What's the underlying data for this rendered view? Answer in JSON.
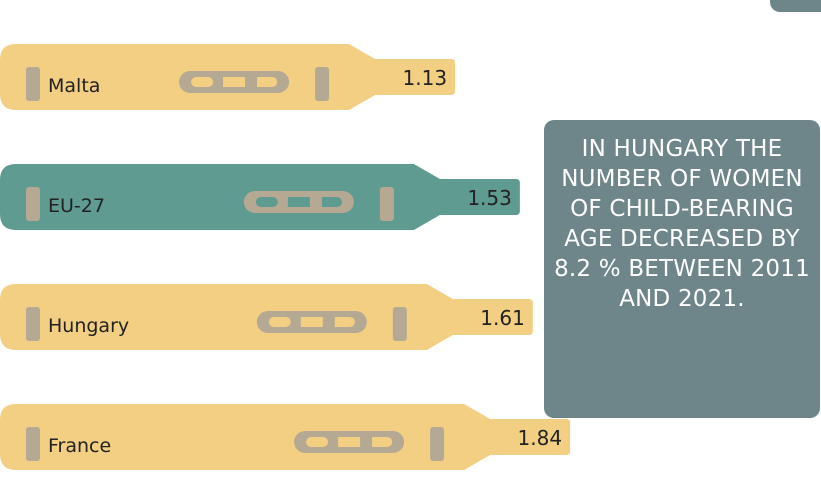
{
  "chart_data": {
    "type": "bar",
    "categories": [
      "Malta",
      "EU-27",
      "Hungary",
      "France"
    ],
    "values": [
      1.13,
      1.53,
      1.61,
      1.84
    ],
    "value_labels": [
      "1.13",
      "1.53",
      "1.61",
      "1.84"
    ],
    "highlight_category": "EU-27",
    "title": "",
    "xlabel": "",
    "ylabel": "",
    "grid": false,
    "legend": "none"
  },
  "callout": {
    "text": "IN HUNGARY THE NUMBER OF WOMEN OF CHILD-BEARING AGE DECREASED BY 8.2 % BETWEEN 2011 AND 2021."
  },
  "colors": {
    "bar_default": "#f2cf83",
    "bar_highlight": "#5f9b90",
    "marks": "#b5a993",
    "callout_bg": "#6e8589",
    "text_dark": "#222222",
    "text_light": "#ffffff"
  }
}
